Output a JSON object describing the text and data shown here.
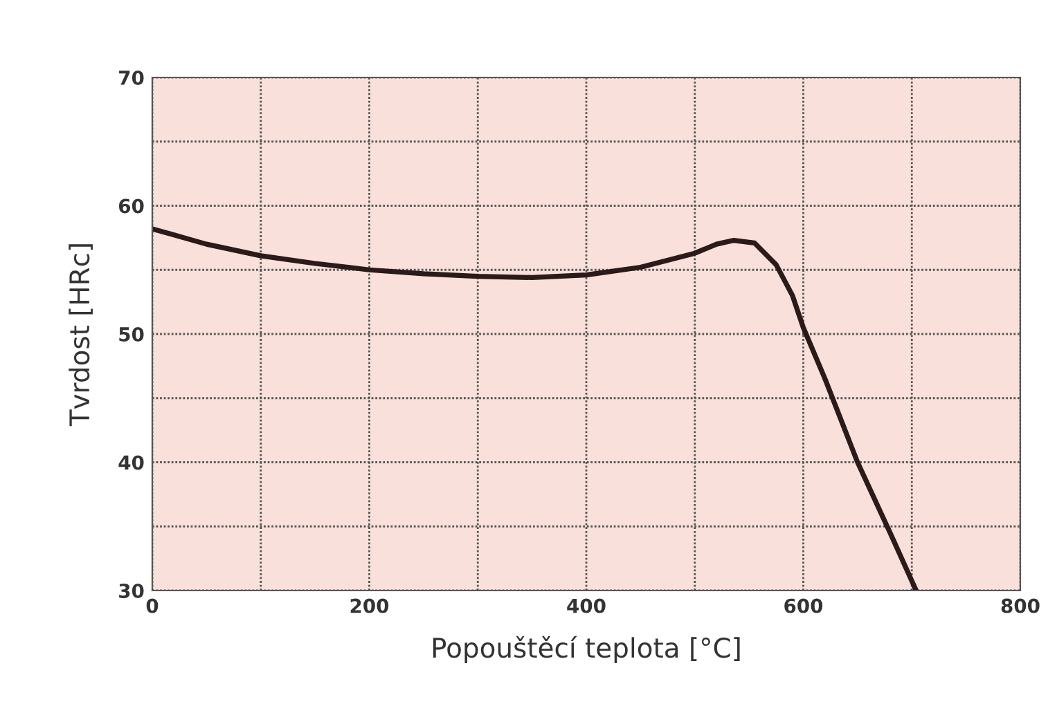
{
  "chart_data": {
    "type": "line",
    "xlabel": "Popouštěcí teplota [°C]",
    "ylabel": "Tvrdost [HRc]",
    "x": [
      0,
      50,
      100,
      150,
      200,
      250,
      300,
      350,
      400,
      450,
      500,
      520,
      536,
      555,
      575,
      590,
      600,
      620,
      650,
      680,
      704
    ],
    "series": [
      {
        "color": "#2b1a1a",
        "values": [
          58.2,
          57.0,
          56.1,
          55.5,
          55.0,
          54.7,
          54.5,
          54.4,
          54.6,
          55.2,
          56.3,
          57.0,
          57.3,
          57.1,
          55.4,
          53.0,
          50.5,
          46.5,
          40.0,
          34.5,
          30.0
        ]
      }
    ],
    "xlim": [
      0,
      800
    ],
    "ylim": [
      30,
      70
    ],
    "xticks": [
      0,
      {
        "value": 100,
        "label": null
      },
      200,
      {
        "value": 300,
        "label": null
      },
      400,
      {
        "value": 500,
        "label": null
      },
      600,
      {
        "value": 700,
        "label": null
      },
      800
    ],
    "yticks": [
      30,
      {
        "value": 35,
        "label": null
      },
      40,
      {
        "value": 45,
        "label": null
      },
      50,
      {
        "value": 55,
        "label": null
      },
      60,
      {
        "value": 65,
        "label": null
      },
      70
    ],
    "grid": true,
    "line_style": "solid",
    "marker": "none",
    "legend": false
  }
}
